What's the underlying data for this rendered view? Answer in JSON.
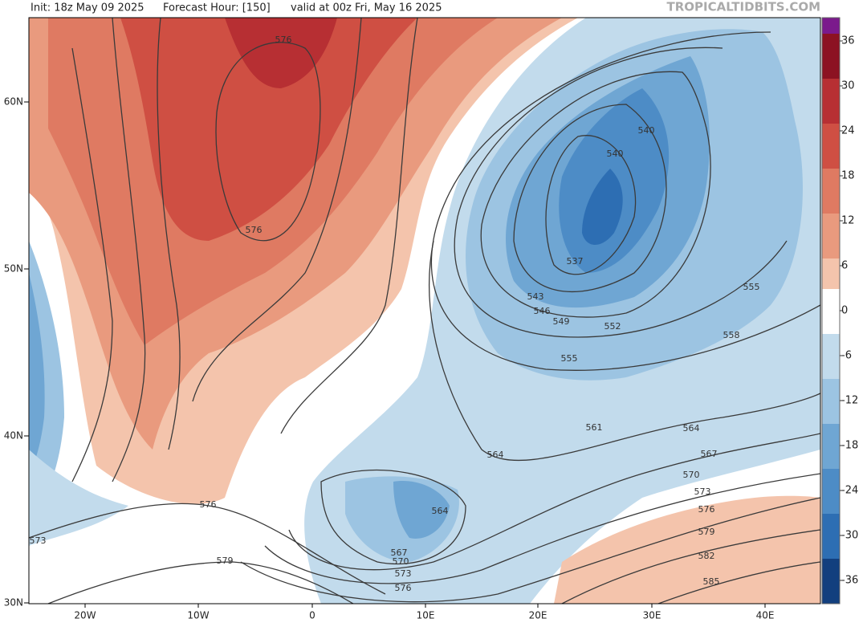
{
  "header": {
    "init": "Init: 18z May 09 2025",
    "forecast_hour": "Forecast Hour: [150]",
    "valid": "valid at 00z Fri, May 16 2025",
    "source": "TROPICALTIDBITS.COM"
  },
  "colorbar": {
    "ticks": [
      36,
      30,
      24,
      18,
      12,
      6,
      0,
      -6,
      -12,
      -18,
      -24,
      -30,
      -36
    ]
  },
  "axes": {
    "lat_labels": [
      "60N",
      "50N",
      "40N",
      "30N"
    ],
    "lon_labels": [
      "20W",
      "10W",
      "0",
      "10E",
      "20E",
      "30E",
      "40E"
    ]
  },
  "contour_labels": [
    576,
    540,
    540,
    576,
    537,
    543,
    546,
    549,
    552,
    555,
    558,
    555,
    561,
    564,
    564,
    567,
    570,
    573,
    576,
    579,
    582,
    585,
    576,
    573,
    579,
    564,
    567,
    570,
    573,
    576
  ]
}
